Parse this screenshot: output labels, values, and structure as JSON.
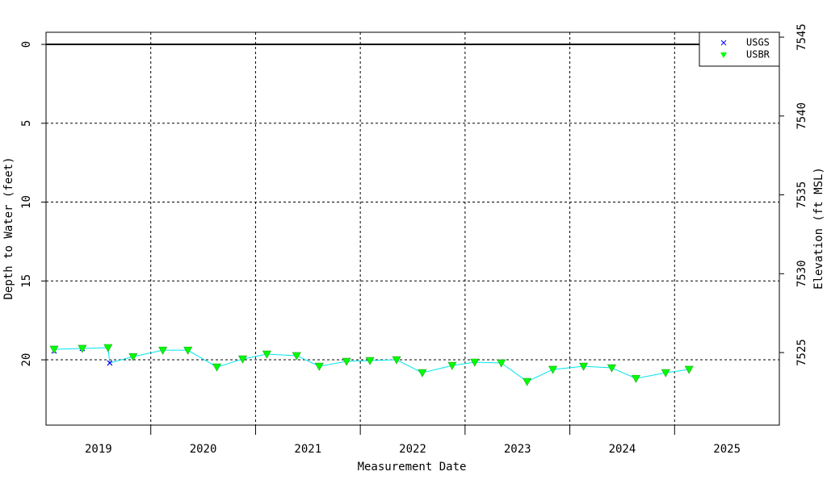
{
  "chart_data": {
    "type": "line",
    "x_label": "Measurement Date",
    "y_label": "Depth to Water (feet)",
    "y2_label": "Elevation (ft MSL)",
    "x": [
      2019.077,
      2019.346,
      2019.592,
      2019.608,
      2019.831,
      2020.115,
      2020.354,
      2020.631,
      2020.877,
      2021.108,
      2021.392,
      2021.608,
      2021.869,
      2022.092,
      2022.346,
      2022.592,
      2022.877,
      2023.092,
      2023.346,
      2023.592,
      2023.838,
      2024.131,
      2024.4,
      2024.631,
      2024.915,
      2025.138
    ],
    "series": [
      {
        "name": "USGS",
        "color": "#0000ff",
        "marker": "x",
        "values": [
          19.44,
          19.28,
          null,
          20.2,
          null,
          null,
          null,
          null,
          null,
          null,
          null,
          null,
          null,
          null,
          null,
          null,
          null,
          null,
          null,
          null,
          null,
          null,
          null,
          null,
          null,
          null
        ]
      },
      {
        "name": "USBR",
        "color": "#00ff00",
        "marker": "triangle-down",
        "values": [
          19.33,
          19.28,
          19.23,
          null,
          19.8,
          19.39,
          19.39,
          20.46,
          19.95,
          19.64,
          19.74,
          20.41,
          20.1,
          20.05,
          20.0,
          20.82,
          20.36,
          20.15,
          20.2,
          21.38,
          20.61,
          20.41,
          20.51,
          21.18,
          20.82,
          20.61
        ]
      }
    ],
    "line_color": "#00e5ee",
    "xlim": [
      2019.0,
      2026.0
    ],
    "xticks": [
      {
        "value": 2019.5,
        "label": "2019"
      },
      {
        "value": 2020.5,
        "label": "2020"
      },
      {
        "value": 2021.5,
        "label": "2021"
      },
      {
        "value": 2022.5,
        "label": "2022"
      },
      {
        "value": 2023.5,
        "label": "2023"
      },
      {
        "value": 2024.5,
        "label": "2024"
      },
      {
        "value": 2025.5,
        "label": "2025"
      }
    ],
    "x_grid": [
      2020,
      2021,
      2022,
      2023,
      2024,
      2025
    ],
    "ylim": [
      24.14,
      -0.77
    ],
    "yticks": [
      0,
      5,
      10,
      15,
      20
    ],
    "y2lim": [
      7520.4,
      7545.31
    ],
    "y2ticks": [
      7525,
      7530,
      7535,
      7540,
      7545
    ],
    "reference_line": 0,
    "grid": true,
    "legend": "top-right"
  }
}
